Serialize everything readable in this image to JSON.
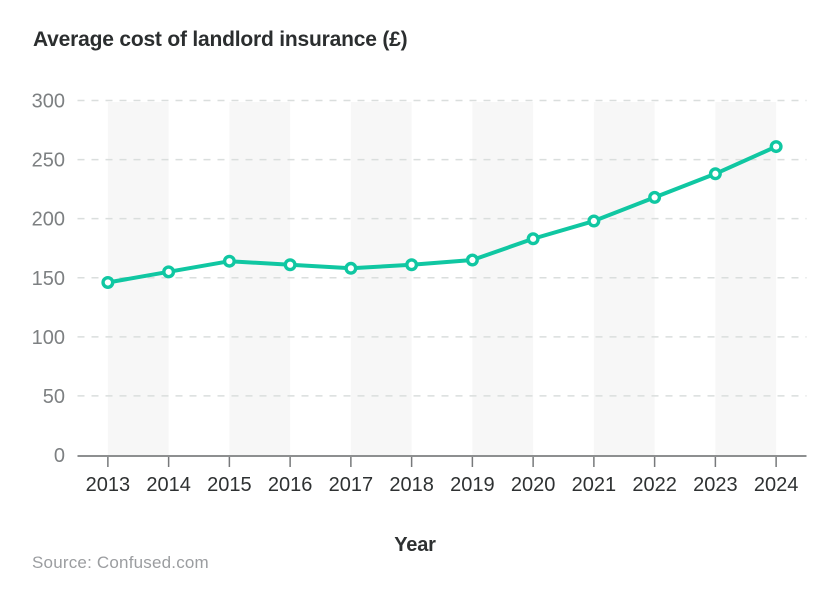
{
  "header": {
    "title": "Average cost of landlord insurance (£)"
  },
  "source": {
    "label": "Source: Confused.com"
  },
  "chart_data": {
    "type": "line",
    "title": "Average cost of landlord insurance (£)",
    "xlabel": "Year",
    "ylabel": "",
    "categories": [
      "2013",
      "2014",
      "2015",
      "2016",
      "2017",
      "2018",
      "2019",
      "2020",
      "2021",
      "2022",
      "2023",
      "2024"
    ],
    "series": [
      {
        "name": "Average cost of landlord insurance (£)",
        "values": [
          146,
          155,
          164,
          161,
          158,
          161,
          165,
          183,
          198,
          218,
          238,
          261
        ]
      }
    ],
    "ylim": [
      0,
      300
    ],
    "yticks": [
      0,
      50,
      100,
      150,
      200,
      250,
      300
    ],
    "grid": "horizontal-dashed",
    "legend": "none",
    "marker": "open-circle",
    "background_bands": "alternating-year-pairs"
  },
  "style": {
    "line_color": "#10c7a2",
    "marker_fill": "#ffffff",
    "band_color": "#f7f7f7",
    "grid_color": "#dadedd",
    "axis_color": "#8d8f90",
    "tick_color": "#77797b",
    "x_label_color": "#2e3132",
    "y_label_color": "#7d8082",
    "title_color": "#2b2e2f",
    "source_color": "#9b9da0"
  }
}
